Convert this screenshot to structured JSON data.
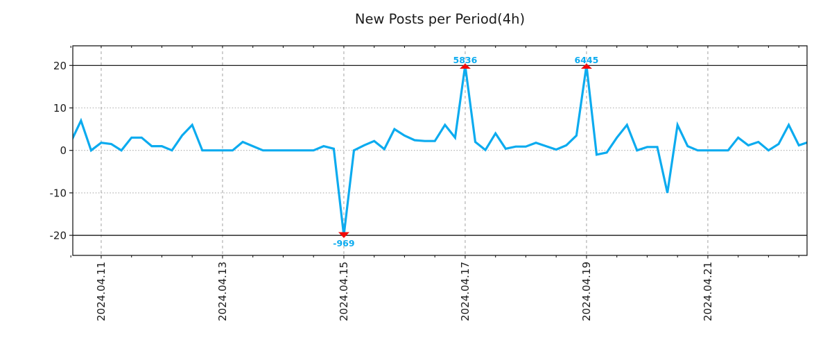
{
  "chart_data": {
    "type": "line",
    "title": "New Posts per Period(4h)",
    "period_label": "4h",
    "x_start": "2024-04-10 12:00",
    "x_step_hours": 4,
    "values": [
      2,
      7,
      0,
      1.8,
      1.5,
      0,
      3,
      3,
      1,
      1,
      0,
      3.5,
      6,
      0,
      0,
      0,
      0,
      2,
      1,
      0,
      0,
      0,
      0,
      0,
      0,
      1,
      0.4,
      -20,
      0,
      1.2,
      2.2,
      0.3,
      5,
      3.5,
      2.4,
      2.2,
      2.2,
      6,
      3,
      20,
      2,
      0.1,
      4,
      0.4,
      0.9,
      0.9,
      1.8,
      1,
      0.2,
      1.2,
      3.5,
      20,
      -1,
      -0.5,
      3,
      6,
      0,
      0.8,
      0.8,
      -10,
      6,
      1,
      0,
      0,
      0,
      0,
      3,
      1.2,
      2,
      0,
      1.5,
      6,
      1.2,
      2
    ],
    "clip_range": [
      -20,
      20
    ],
    "x_tick_labels": [
      "2024.04.11",
      "2024.04.13",
      "2024.04.15",
      "2024.04.17",
      "2024.04.19",
      "2024.04.21"
    ],
    "x_tick_indices": [
      3,
      15,
      27,
      39,
      51,
      63
    ],
    "x_minor_tick_every_indices": 3,
    "y_ticks": [
      20,
      10,
      0,
      -10,
      -20
    ],
    "y_tick_labels": [
      "20",
      "10",
      "0",
      "-10",
      "-20"
    ],
    "y_dotted_gridlines": [
      10,
      0,
      -10
    ],
    "y_solid_lines": [
      20,
      -20
    ],
    "ylim": [
      -24.7,
      24.6
    ],
    "grid": true,
    "legend": null,
    "annotations": [
      {
        "label": "5836",
        "value": 5836,
        "index": 39,
        "direction": "up"
      },
      {
        "label": "6445",
        "value": 6445,
        "index": 51,
        "direction": "up"
      },
      {
        "label": "-969",
        "value": -969,
        "index": 27,
        "direction": "down"
      }
    ],
    "colors": {
      "line": "#0cabef",
      "annotation_text": "#0cabef",
      "marker": "#f20a0a",
      "grid": "#aaaaaa",
      "threshold": "#000000",
      "axis": "#1a1a1a",
      "text": "#1a1a1a"
    }
  }
}
